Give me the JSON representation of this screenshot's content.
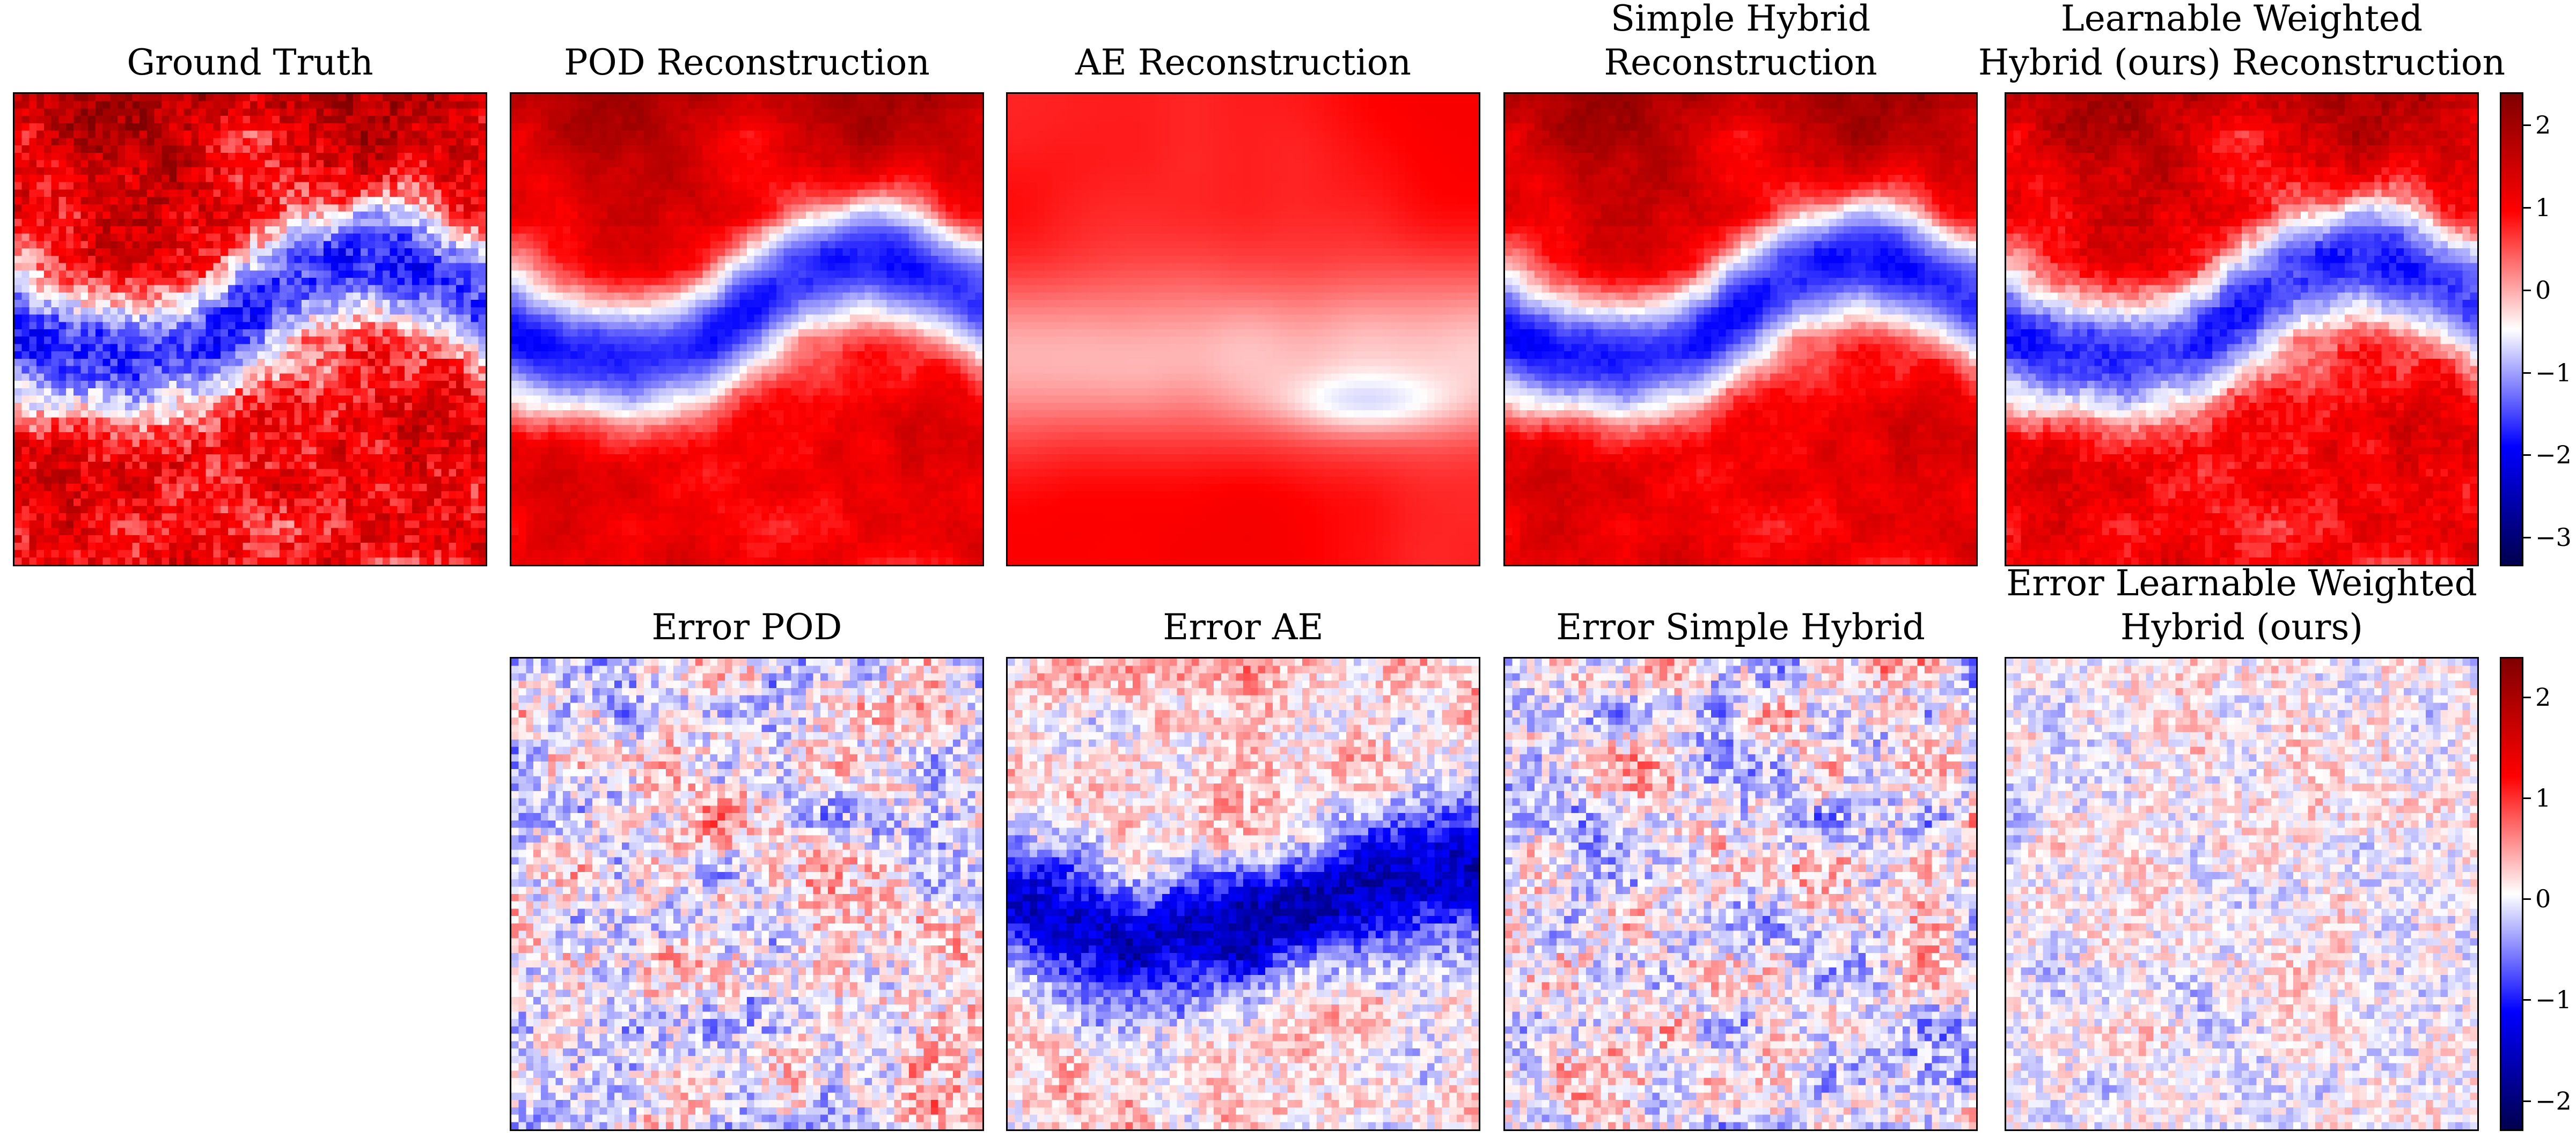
{
  "chart_data": {
    "type": "heatmap",
    "colormap": "seismic",
    "grid": "off",
    "rows": [
      {
        "panels": [
          {
            "id": "ground-truth",
            "title_lines": [
              "Ground Truth"
            ],
            "pattern": "truth"
          },
          {
            "id": "pod-reconstruction",
            "title_lines": [
              "POD Reconstruction"
            ],
            "pattern": "pod"
          },
          {
            "id": "ae-reconstruction",
            "title_lines": [
              "AE Reconstruction"
            ],
            "pattern": "ae"
          },
          {
            "id": "simple-hybrid-reconstruction",
            "title_lines": [
              "Simple Hybrid",
              "Reconstruction"
            ],
            "pattern": "hybrid"
          },
          {
            "id": "learnable-hybrid-reconstruction",
            "title_lines": [
              "Learnable Weighted",
              "Hybrid (ours) Reconstruction"
            ],
            "pattern": "learnable"
          }
        ],
        "colorbar": {
          "vmin": -3.35,
          "vmax": 2.4,
          "ticks": [
            2,
            1,
            0,
            -1,
            -2,
            -3
          ],
          "tick_labels": [
            "2",
            "1",
            "0",
            "−1",
            "−2",
            "−3"
          ]
        }
      },
      {
        "panels": [
          {
            "id": "error-pod",
            "title_lines": [
              "Error POD"
            ],
            "pattern": "err_pod"
          },
          {
            "id": "error-ae",
            "title_lines": [
              "Error AE"
            ],
            "pattern": "err_ae"
          },
          {
            "id": "error-simple-hybrid",
            "title_lines": [
              "Error Simple Hybrid"
            ],
            "pattern": "err_hybrid"
          },
          {
            "id": "error-learnable-hybrid",
            "title_lines": [
              "Error Learnable Weighted",
              "Hybrid (ours)"
            ],
            "pattern": "err_learnable"
          }
        ],
        "colorbar": {
          "vmin": -2.3,
          "vmax": 2.4,
          "ticks": [
            2,
            1,
            0,
            -1,
            -2
          ],
          "tick_labels": [
            "2",
            "1",
            "0",
            "−1",
            "−2"
          ]
        }
      }
    ]
  }
}
